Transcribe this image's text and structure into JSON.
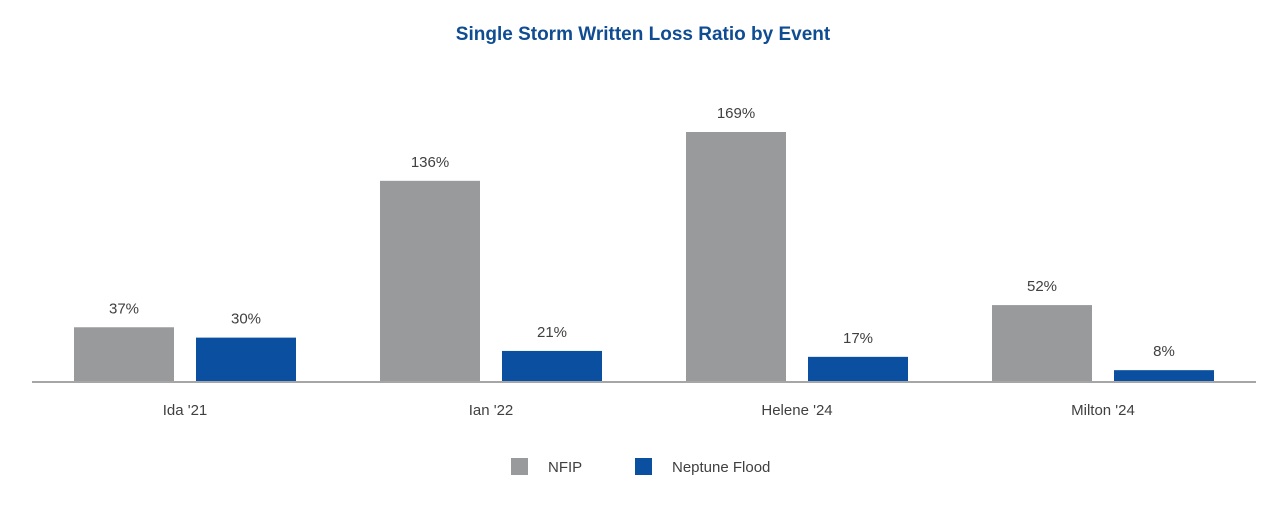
{
  "chart_data": {
    "type": "bar",
    "title": "Single Storm Written Loss Ratio by Event",
    "categories": [
      "Ida '21",
      "Ian '22",
      "Helene '24",
      "Milton '24"
    ],
    "series": [
      {
        "name": "NFIP",
        "values": [
          37,
          136,
          169,
          52
        ],
        "labels": [
          "37%",
          "136%",
          "169%",
          "52%"
        ],
        "color": "#999a9c"
      },
      {
        "name": "Neptune Flood",
        "values": [
          30,
          21,
          17,
          8
        ],
        "labels": [
          "30%",
          "21%",
          "17%",
          "8%"
        ],
        "color": "#0b4fa1"
      }
    ],
    "xlabel": "",
    "ylabel": "",
    "ylim": [
      0,
      169
    ],
    "grid": false,
    "legend": "bottom-center",
    "axis_color": "#a6a6a6",
    "title_color": "#0f4c92"
  }
}
